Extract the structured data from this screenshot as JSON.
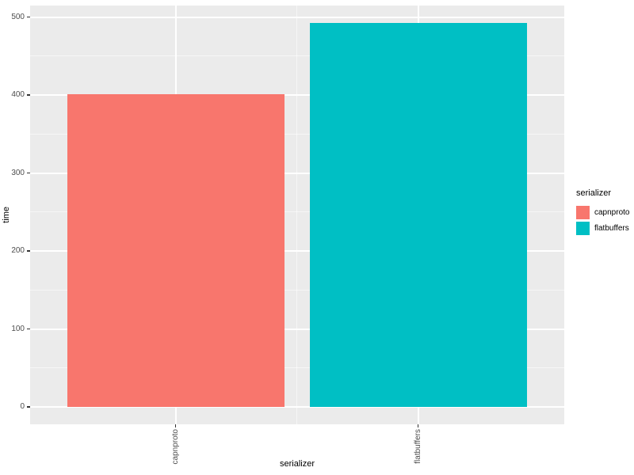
{
  "chart_data": {
    "type": "bar",
    "title": "",
    "xlabel": "serializer",
    "ylabel": "time",
    "categories": [
      "capnproto",
      "flatbuffers"
    ],
    "values": [
      401,
      492
    ],
    "bar_colors": [
      "#F8766D",
      "#00BFC4"
    ],
    "y_ticks": [
      0,
      100,
      200,
      300,
      400,
      500
    ],
    "y_minor_ticks": [
      50,
      150,
      250,
      350,
      450
    ],
    "ylim": [
      0,
      500
    ],
    "grid": "on",
    "panel_background": "#EBEBEB",
    "gridline_color": "#FFFFFF",
    "tick_label_color": "#4D4D4D",
    "legend": {
      "title": "serializer",
      "position": "right",
      "entries": [
        {
          "label": "capnproto",
          "color": "#F8766D"
        },
        {
          "label": "flatbuffers",
          "color": "#00BFC4"
        }
      ]
    }
  }
}
